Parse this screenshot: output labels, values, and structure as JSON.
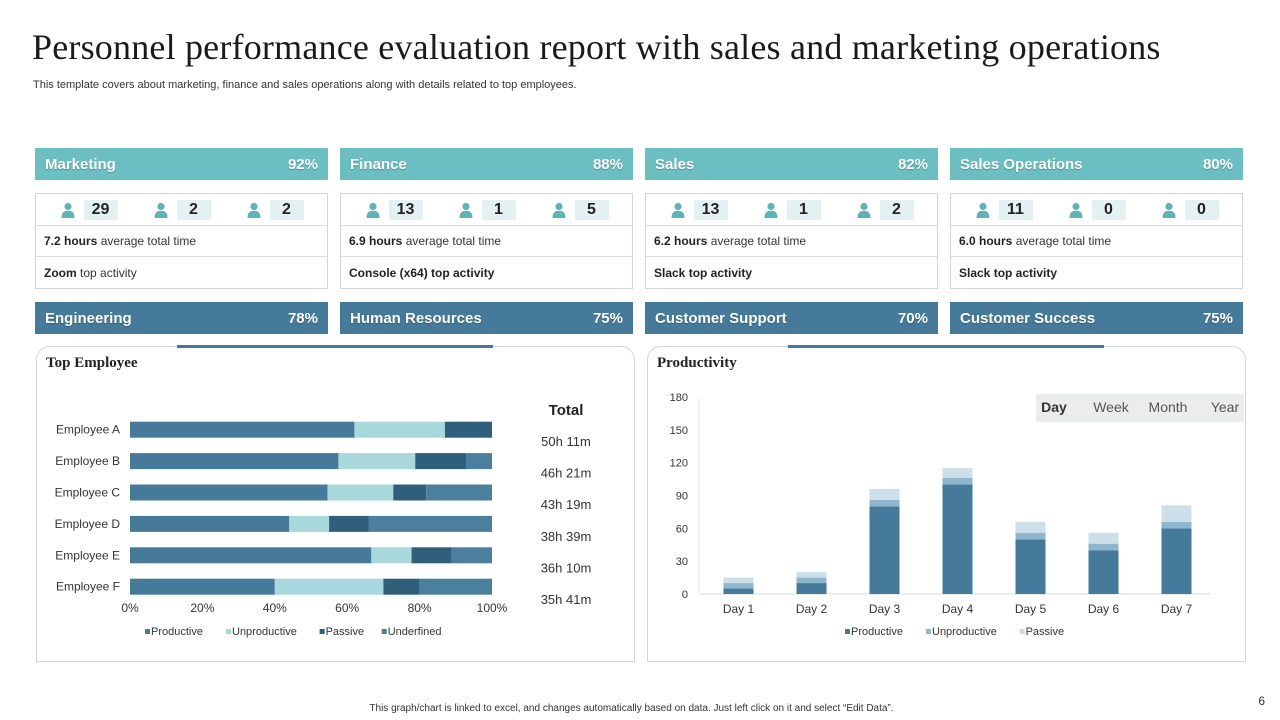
{
  "title": "Personnel performance evaluation report with sales and marketing operations",
  "subtitle": "This template covers about marketing, finance and sales operations along with details related to top employees.",
  "colors": {
    "teal": "#6bbfc2",
    "blue": "#457a9b",
    "productive": "#457a9b",
    "unproductive": "#a8d8dc",
    "passive": "#2f5f7a",
    "undefined": "#4a7f9e",
    "prod_unproductive": "#8fb6cc",
    "prod_passive": "#cde0ea"
  },
  "departments": [
    {
      "name": "Marketing",
      "percent": "92%",
      "stats": [
        "29",
        "2",
        "2"
      ],
      "hours": "7.2 hours",
      "hours_suffix": " average total time",
      "activity": "Zoom",
      "activity_suffix": " top activity",
      "activity_bold": false
    },
    {
      "name": "Finance",
      "percent": "88%",
      "stats": [
        "13",
        "1",
        "5"
      ],
      "hours": "6.9 hours",
      "hours_suffix": " average total time",
      "activity": "Console (x64) top activity",
      "activity_suffix": "",
      "activity_bold": true
    },
    {
      "name": "Sales",
      "percent": "82%",
      "stats": [
        "13",
        "1",
        "2"
      ],
      "hours": "6.2 hours",
      "hours_suffix": " average total time",
      "activity": "Slack top activity",
      "activity_suffix": "",
      "activity_bold": true
    },
    {
      "name": "Sales Operations",
      "percent": "80%",
      "stats": [
        "11",
        "0",
        "0"
      ],
      "hours": "6.0 hours",
      "hours_suffix": " average total time",
      "activity": "Slack top activity",
      "activity_suffix": "",
      "activity_bold": true
    }
  ],
  "departments_row2": [
    {
      "name": "Engineering",
      "percent": "78%"
    },
    {
      "name": "Human Resources",
      "percent": "75%"
    },
    {
      "name": "Customer Support",
      "percent": "70%"
    },
    {
      "name": "Customer Success",
      "percent": "75%"
    }
  ],
  "top_employee": {
    "title": "Top Employee",
    "total_label": "Total"
  },
  "productivity": {
    "title": "Productivity",
    "periods": [
      "Day",
      "Week",
      "Month",
      "Year"
    ],
    "selected_period": "Day"
  },
  "chart_data": [
    {
      "type": "bar",
      "orientation": "horizontal",
      "stacked": "percent",
      "categories": [
        "Employee A",
        "Employee B",
        "Employee C",
        "Employee D",
        "Employee E",
        "Employee F"
      ],
      "series": [
        {
          "name": "Productive",
          "values": [
            62,
            57,
            54,
            44,
            66,
            40
          ]
        },
        {
          "name": "Unproductive",
          "values": [
            25,
            21,
            18,
            11,
            11,
            30
          ]
        },
        {
          "name": "Passive",
          "values": [
            13,
            14,
            9,
            11,
            11,
            10
          ]
        },
        {
          "name": "Underfined",
          "values": [
            0,
            7,
            18,
            34,
            11,
            20
          ]
        }
      ],
      "totals": [
        "50h  11m",
        "46h  21m",
        "43h  19m",
        "38h  39m",
        "36h  10m",
        "35h  41m"
      ],
      "xticks": [
        "0%",
        "20%",
        "40%",
        "60%",
        "80%",
        "100%"
      ],
      "xlim": [
        0,
        100
      ],
      "legend_position": "bottom"
    },
    {
      "type": "bar",
      "stacked": true,
      "categories": [
        "Day 1",
        "Day 2",
        "Day 3",
        "Day 4",
        "Day 5",
        "Day 6",
        "Day 7"
      ],
      "series": [
        {
          "name": "Productive",
          "values": [
            5,
            10,
            80,
            100,
            50,
            40,
            60
          ]
        },
        {
          "name": "Unproductive",
          "values": [
            5,
            5,
            6,
            6,
            6,
            6,
            6
          ]
        },
        {
          "name": "Passive",
          "values": [
            5,
            5,
            10,
            9,
            10,
            10,
            15
          ]
        }
      ],
      "yticks": [
        0,
        30,
        60,
        90,
        120,
        150,
        180
      ],
      "ylim": [
        0,
        180
      ],
      "legend_position": "bottom"
    }
  ],
  "footnote": "This graph/chart is linked to excel, and changes automatically based on data. Just left click on it and select “Edit Data”.",
  "page_number": "6"
}
